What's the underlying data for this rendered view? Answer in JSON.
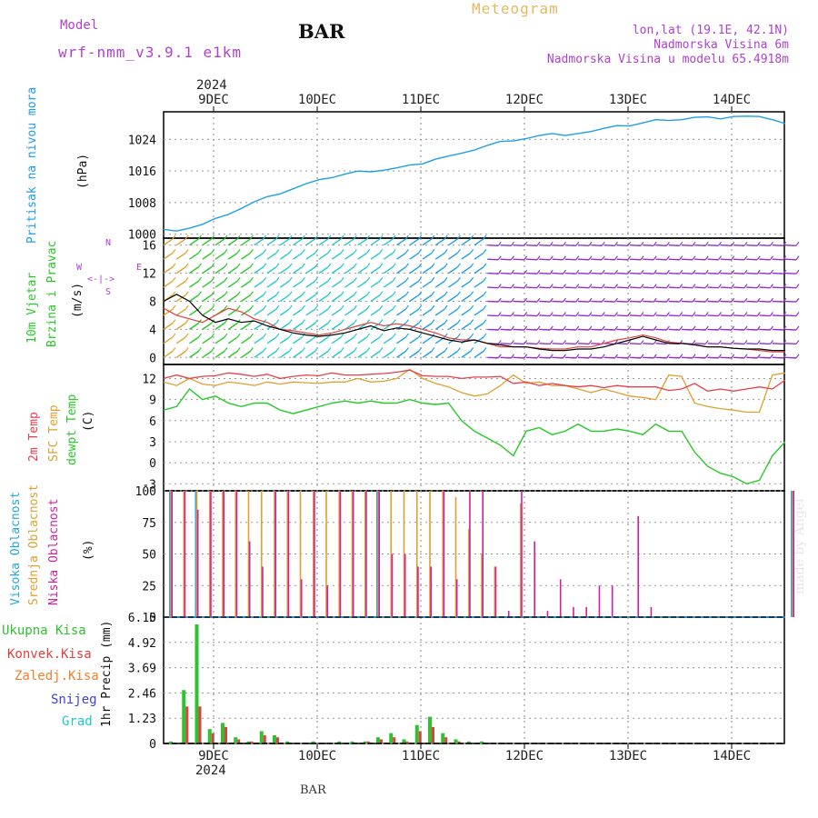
{
  "header": {
    "model_label": "Model",
    "model_name": "wrf-nmm_v3.9.1 e1km",
    "station": "BAR",
    "meteogram_title": "Meteogram",
    "lonlat": "lon,lat (19.1E, 42.1N)",
    "elevation": "Nadmorska Visina 6m",
    "model_elevation": "Nadmorska Visina u modelu 65.4918m",
    "credit": "made by Angel",
    "footer_station": "BAR"
  },
  "colors": {
    "pressure": "#1e9ee8",
    "temp2m": "#e8404a",
    "sfc_temp": "#e0a030",
    "dewpt": "#28c828",
    "high_cloud": "#20a8e0",
    "mid_cloud": "#e0a030",
    "low_cloud": "#d020a0",
    "total_precip": "#30c030",
    "conv_precip": "#e04040",
    "frozen_precip": "#f08030",
    "snow": "#4040e0",
    "hail": "#20c8c8",
    "wind_speed": "#000000",
    "wind_gust": "#e04040",
    "purple_text": "#b040d0",
    "gold_text": "#e8b860"
  },
  "time_axis": {
    "top_year": "2024",
    "bottom_year": "2024",
    "day_labels": [
      "9DEC",
      "10DEC",
      "11DEC",
      "12DEC",
      "13DEC",
      "14DEC"
    ]
  },
  "chart_data": [
    {
      "type": "line",
      "panel": "pressure",
      "ylabel_left": "Pritisak na nivou mora",
      "ylabel_unit": "(hPa)",
      "yticks": [
        1000,
        1008,
        1016,
        1024
      ],
      "ylim": [
        999,
        1031
      ],
      "x_hours": [
        0,
        3,
        6,
        9,
        12,
        15,
        18,
        21,
        24,
        27,
        30,
        33,
        36,
        39,
        42,
        45,
        48,
        51,
        54,
        57,
        60,
        63,
        66,
        69,
        72,
        75,
        78,
        81,
        84,
        87,
        90,
        93,
        96,
        99,
        102,
        105,
        108,
        111,
        114,
        117,
        120,
        123,
        126,
        129,
        132,
        135,
        138,
        141,
        144
      ],
      "series": [
        {
          "values": [
            1001.2,
            1000.8,
            1001.5,
            1002.5,
            1004.0,
            1005.0,
            1006.5,
            1008.2,
            1009.5,
            1010.2,
            1011.5,
            1012.8,
            1013.8,
            1014.3,
            1015.2,
            1016.0,
            1015.8,
            1016.2,
            1016.8,
            1017.5,
            1017.8,
            1019.0,
            1019.8,
            1020.5,
            1021.3,
            1022.5,
            1023.5,
            1023.6,
            1024.2,
            1025.0,
            1025.5,
            1025.0,
            1025.5,
            1026.0,
            1026.8,
            1027.5,
            1027.4,
            1028.2,
            1029.0,
            1028.8,
            1029.0,
            1029.6,
            1029.7,
            1029.2,
            1029.8,
            1029.9,
            1029.8,
            1029.0,
            1028.0
          ]
        }
      ]
    },
    {
      "type": "line",
      "panel": "wind",
      "ylabel_left_1": "10m Vjetar",
      "ylabel_left_2": "Brzina i Pravac",
      "ylabel_unit": "(m/s)",
      "compass_s": "S",
      "compass_n": "N",
      "compass_w": "W",
      "compass_e": "E",
      "compass_arrows": "<-|->",
      "yticks": [
        0,
        4,
        8,
        12,
        16
      ],
      "ylim": [
        -1,
        17
      ],
      "x_hours": [
        0,
        3,
        6,
        9,
        12,
        15,
        18,
        21,
        24,
        27,
        30,
        33,
        36,
        39,
        42,
        45,
        48,
        51,
        54,
        57,
        60,
        63,
        66,
        69,
        72,
        75,
        78,
        81,
        84,
        87,
        90,
        93,
        96,
        99,
        102,
        105,
        108,
        111,
        114,
        117,
        120,
        123,
        126,
        129,
        132,
        135,
        138,
        141,
        144
      ],
      "series": [
        {
          "role": "speed",
          "values": [
            8.0,
            9.0,
            8.0,
            6.0,
            5.0,
            5.5,
            5.0,
            5.2,
            4.5,
            4.0,
            3.5,
            3.2,
            3.0,
            3.2,
            3.5,
            4.0,
            4.5,
            3.8,
            4.2,
            4.0,
            3.5,
            3.0,
            2.5,
            2.2,
            2.5,
            2.0,
            1.8,
            1.5,
            1.5,
            1.2,
            1.0,
            1.0,
            1.2,
            1.2,
            1.5,
            2.0,
            2.5,
            3.0,
            2.5,
            2.0,
            2.0,
            1.8,
            1.5,
            1.5,
            1.3,
            1.2,
            1.2,
            1.0,
            1.0
          ]
        },
        {
          "role": "gust",
          "values": [
            7.0,
            6.0,
            5.5,
            5.0,
            6.0,
            7.0,
            6.5,
            5.5,
            5.0,
            4.0,
            3.8,
            3.5,
            3.2,
            3.5,
            4.0,
            4.5,
            5.0,
            4.5,
            4.8,
            4.5,
            4.0,
            3.5,
            2.8,
            2.5,
            2.5,
            2.0,
            1.5,
            1.5,
            1.5,
            1.3,
            1.2,
            1.2,
            1.5,
            1.5,
            2.0,
            2.5,
            2.8,
            3.2,
            2.8,
            2.2,
            2.0,
            1.8,
            1.5,
            1.5,
            1.3,
            1.2,
            1.0,
            0.8,
            0.8
          ]
        }
      ]
    },
    {
      "type": "line",
      "panel": "temperature",
      "ylabel_left_1": "2m Temp",
      "ylabel_left_2": "SFC Temp",
      "ylabel_left_3": "dewpt Temp",
      "ylabel_unit": "(C)",
      "yticks": [
        -3,
        0,
        3,
        6,
        9,
        12
      ],
      "ylim": [
        -4,
        14
      ],
      "x_hours": [
        0,
        3,
        6,
        9,
        12,
        15,
        18,
        21,
        24,
        27,
        30,
        33,
        36,
        39,
        42,
        45,
        48,
        51,
        54,
        57,
        60,
        63,
        66,
        69,
        72,
        75,
        78,
        81,
        84,
        87,
        90,
        93,
        96,
        99,
        102,
        105,
        108,
        111,
        114,
        117,
        120,
        123,
        126,
        129,
        132,
        135,
        138,
        141,
        144
      ],
      "series": [
        {
          "role": "2m",
          "values": [
            12.0,
            12.5,
            12.0,
            12.3,
            12.4,
            12.8,
            12.6,
            12.3,
            12.6,
            12.0,
            12.3,
            12.5,
            12.4,
            12.8,
            12.5,
            12.5,
            12.6,
            12.7,
            12.9,
            13.2,
            12.4,
            12.3,
            12.3,
            12.0,
            12.2,
            12.2,
            12.3,
            11.3,
            11.5,
            11.0,
            11.3,
            11.0,
            10.8,
            11.0,
            10.7,
            11.0,
            10.8,
            10.8,
            10.8,
            10.3,
            10.5,
            11.3,
            10.2,
            10.5,
            10.2,
            10.5,
            10.8,
            10.5,
            11.8
          ]
        },
        {
          "role": "sfc",
          "values": [
            11.5,
            11.0,
            12.0,
            11.2,
            11.0,
            11.5,
            11.3,
            11.0,
            11.5,
            11.2,
            11.5,
            11.4,
            11.3,
            11.5,
            11.5,
            12.0,
            11.5,
            11.6,
            12.0,
            13.3,
            12.0,
            11.3,
            10.8,
            10.0,
            9.5,
            9.8,
            11.0,
            12.5,
            11.3,
            11.5,
            11.0,
            11.0,
            10.5,
            10.0,
            10.5,
            10.0,
            9.5,
            9.3,
            9.0,
            12.5,
            12.3,
            8.5,
            8.0,
            7.7,
            7.5,
            7.2,
            7.2,
            12.5,
            12.8
          ]
        },
        {
          "role": "dewpt",
          "values": [
            7.5,
            8.0,
            10.5,
            9.0,
            9.5,
            8.5,
            8.0,
            8.5,
            8.5,
            7.5,
            7.0,
            7.5,
            8.0,
            8.5,
            8.8,
            8.5,
            8.8,
            8.5,
            8.5,
            9.0,
            8.5,
            8.3,
            8.5,
            6.0,
            4.5,
            3.5,
            2.5,
            1.0,
            4.5,
            5.0,
            4.0,
            4.5,
            5.5,
            4.5,
            4.5,
            4.8,
            4.5,
            4.0,
            5.5,
            4.5,
            4.5,
            1.5,
            -0.5,
            -1.5,
            -2.0,
            -3.0,
            -2.5,
            1.0,
            3.0
          ]
        }
      ]
    },
    {
      "type": "bar",
      "panel": "clouds",
      "ylabel_left_1": "Visoka Oblacnost",
      "ylabel_left_2": "Srednja Oblacnost",
      "ylabel_left_3": "Niska Oblacnost",
      "ylabel_unit": "(%)",
      "yticks": [
        0,
        25,
        50,
        75,
        100
      ],
      "ylim": [
        0,
        100
      ],
      "x_hours": [
        0,
        3,
        6,
        9,
        12,
        15,
        18,
        21,
        24,
        27,
        30,
        33,
        36,
        39,
        42,
        45,
        48,
        51,
        54,
        57,
        60,
        63,
        66,
        69,
        72,
        75,
        78,
        81,
        84,
        87,
        90,
        93,
        96,
        99,
        102,
        105,
        108,
        111,
        114,
        117,
        120,
        123,
        126,
        129,
        132,
        135,
        138,
        141,
        144
      ],
      "series": [
        {
          "role": "high",
          "values": [
            100,
            0,
            100,
            0,
            0,
            0,
            0,
            0,
            0,
            0,
            0,
            0,
            0,
            0,
            0,
            0,
            100,
            0,
            0,
            0,
            0,
            0,
            0,
            0,
            0,
            0,
            0,
            0,
            0,
            0,
            0,
            0,
            0,
            0,
            0,
            0,
            0,
            0,
            0,
            0,
            0,
            0,
            0,
            0,
            0,
            0,
            0,
            0,
            100
          ]
        },
        {
          "role": "mid",
          "values": [
            100,
            100,
            100,
            100,
            100,
            100,
            100,
            100,
            100,
            100,
            100,
            100,
            100,
            100,
            100,
            100,
            100,
            100,
            100,
            100,
            100,
            100,
            95,
            70,
            50,
            40,
            0,
            90,
            0,
            0,
            0,
            0,
            0,
            0,
            0,
            0,
            0,
            0,
            0,
            0,
            0,
            0,
            0,
            0,
            0,
            0,
            0,
            0,
            100
          ]
        },
        {
          "role": "low",
          "values": [
            100,
            100,
            85,
            100,
            100,
            100,
            60,
            40,
            100,
            100,
            30,
            100,
            25,
            100,
            100,
            100,
            100,
            50,
            50,
            40,
            40,
            100,
            30,
            100,
            100,
            40,
            5,
            100,
            60,
            5,
            30,
            8,
            8,
            25,
            25,
            0,
            80,
            8,
            0,
            0,
            0,
            0,
            0,
            0,
            0,
            0,
            0,
            0,
            100
          ]
        }
      ]
    },
    {
      "type": "bar",
      "panel": "precip",
      "legend": [
        "Ukupna Kisa",
        "Konvek.Kisa",
        "Zaledj.Kisa",
        "Snijeg",
        "Grad"
      ],
      "ylabel_unit": "1hr Precip (mm)",
      "yticks": [
        "0",
        "1.23",
        "2.46",
        "3.69",
        "4.92",
        "6.15"
      ],
      "ylim": [
        0,
        6.15
      ],
      "x_hours": [
        0,
        3,
        6,
        9,
        12,
        15,
        18,
        21,
        24,
        27,
        30,
        33,
        36,
        39,
        42,
        45,
        48,
        51,
        54,
        57,
        60,
        63,
        66,
        69,
        72,
        75,
        78,
        81,
        84,
        87,
        90,
        93,
        96,
        99,
        102,
        105,
        108,
        111,
        114,
        117,
        120,
        123,
        126,
        129,
        132,
        135,
        138,
        141,
        144
      ],
      "series": [
        {
          "role": "total",
          "values": [
            0.1,
            2.6,
            5.8,
            0.7,
            1.0,
            0.3,
            0.1,
            0.6,
            0.4,
            0.1,
            0.0,
            0.1,
            0.0,
            0.1,
            0.1,
            0.1,
            0.3,
            0.5,
            0.2,
            0.9,
            1.3,
            0.5,
            0.2,
            0.1,
            0.1,
            0.0,
            0.0,
            0.0,
            0.0,
            0.0,
            0.0,
            0.0,
            0.0,
            0.0,
            0.0,
            0.0,
            0.0,
            0.0,
            0.0,
            0.0,
            0.0,
            0.0,
            0.0,
            0.0,
            0.0,
            0.0,
            0.0,
            0.0,
            0.0
          ]
        },
        {
          "role": "convective",
          "values": [
            0.0,
            1.8,
            1.8,
            0.5,
            0.8,
            0.2,
            0.1,
            0.4,
            0.3,
            0.0,
            0.0,
            0.0,
            0.0,
            0.0,
            0.0,
            0.1,
            0.2,
            0.3,
            0.1,
            0.6,
            0.8,
            0.3,
            0.1,
            0.0,
            0.0,
            0.0,
            0.0,
            0.0,
            0.0,
            0.0,
            0.0,
            0.0,
            0.0,
            0.0,
            0.0,
            0.0,
            0.0,
            0.0,
            0.0,
            0.0,
            0.0,
            0.0,
            0.0,
            0.0,
            0.0,
            0.0,
            0.0,
            0.0,
            0.0
          ]
        }
      ]
    }
  ]
}
